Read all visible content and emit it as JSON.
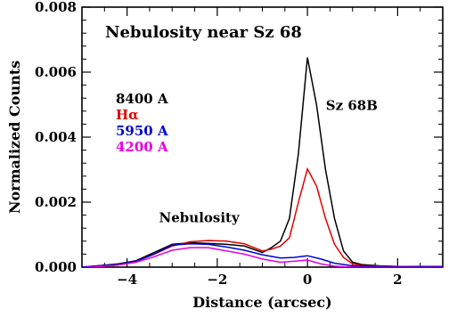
{
  "chart_data": {
    "type": "line",
    "title": "Nebulosity near Sz 68",
    "xlabel": "Distance (arcsec)",
    "ylabel": "Normalized Counts",
    "xlim": [
      -5,
      3
    ],
    "ylim": [
      0,
      0.008
    ],
    "xticks": [
      -4,
      -2,
      0,
      2
    ],
    "xtick_labels": [
      "−4",
      "−2",
      "0",
      "2"
    ],
    "yticks": [
      0,
      0.002,
      0.004,
      0.006,
      0.008
    ],
    "ytick_labels": [
      "0.000",
      "0.002",
      "0.004",
      "0.006",
      "0.008"
    ],
    "grid": false,
    "legend_position": "left",
    "annotations": [
      {
        "text": "Sz 68B",
        "x": 1.0,
        "y": 0.0044
      },
      {
        "text": "Nebulosity",
        "x": -2.4,
        "y": 0.0015
      }
    ],
    "series": [
      {
        "name": "8400 A",
        "color": "#000000",
        "x": [
          -5,
          -4.6,
          -4.2,
          -3.8,
          -3.4,
          -3.0,
          -2.6,
          -2.2,
          -1.8,
          -1.4,
          -1.0,
          -0.8,
          -0.6,
          -0.4,
          -0.2,
          0.0,
          0.2,
          0.4,
          0.6,
          0.8,
          1.0,
          1.2,
          1.6,
          2.0,
          2.4,
          3.0
        ],
        "y": [
          0.0,
          5e-05,
          0.0001,
          0.0002,
          0.00045,
          0.0007,
          0.00075,
          0.00073,
          0.0007,
          0.00065,
          0.00045,
          0.0006,
          0.0008,
          0.0015,
          0.0035,
          0.00645,
          0.005,
          0.003,
          0.0015,
          0.0005,
          0.00015,
          8e-05,
          4e-05,
          2e-05,
          2e-05,
          2e-05
        ]
      },
      {
        "name": "Hα",
        "color": "#e00000",
        "x": [
          -5,
          -4.6,
          -4.2,
          -3.8,
          -3.4,
          -3.0,
          -2.6,
          -2.2,
          -1.8,
          -1.4,
          -1.0,
          -0.8,
          -0.6,
          -0.4,
          -0.2,
          0.0,
          0.2,
          0.4,
          0.6,
          0.8,
          1.0,
          1.2,
          1.6,
          2.0,
          2.4,
          3.0
        ],
        "y": [
          0.0,
          4e-05,
          8e-05,
          0.00018,
          0.0004,
          0.00065,
          0.00078,
          0.00082,
          0.0008,
          0.00072,
          0.0005,
          0.00055,
          0.00065,
          0.0009,
          0.002,
          0.00302,
          0.0025,
          0.0015,
          0.0007,
          0.0003,
          0.0001,
          5e-05,
          3e-05,
          2e-05,
          1e-05,
          1e-05
        ]
      },
      {
        "name": "5950 A",
        "color": "#0000d0",
        "x": [
          -5,
          -4.6,
          -4.2,
          -3.8,
          -3.4,
          -3.0,
          -2.6,
          -2.2,
          -1.8,
          -1.4,
          -1.0,
          -0.6,
          -0.3,
          0.0,
          0.3,
          0.6,
          1.0,
          1.4,
          2.0,
          3.0
        ],
        "y": [
          0.0,
          4e-05,
          8e-05,
          0.00018,
          0.0004,
          0.00068,
          0.00072,
          0.0007,
          0.00062,
          0.00052,
          0.00038,
          0.00028,
          0.0003,
          0.00035,
          0.00025,
          0.00012,
          4e-05,
          2e-05,
          1e-05,
          1e-05
        ]
      },
      {
        "name": "4200 A",
        "color": "#e000e0",
        "x": [
          -5,
          -4.6,
          -4.2,
          -3.8,
          -3.4,
          -3.0,
          -2.6,
          -2.2,
          -1.8,
          -1.4,
          -1.0,
          -0.6,
          -0.3,
          0.0,
          0.3,
          0.6,
          1.0,
          1.4,
          2.0,
          3.0
        ],
        "y": [
          -2e-05,
          2e-05,
          6e-05,
          0.00015,
          0.00032,
          0.00052,
          0.0006,
          0.0006,
          0.0005,
          0.0004,
          0.00025,
          0.00015,
          0.00018,
          0.00022,
          0.0001,
          3e-05,
          0.0,
          -1e-05,
          -1e-05,
          -1e-05
        ]
      }
    ]
  }
}
